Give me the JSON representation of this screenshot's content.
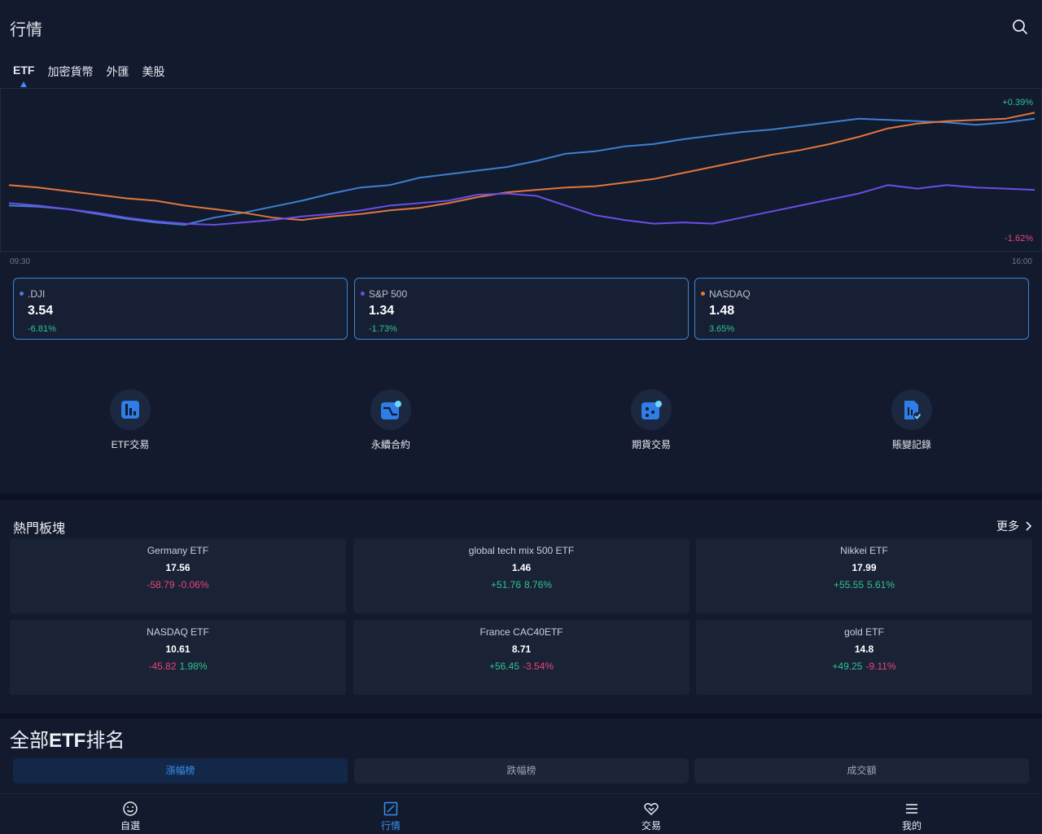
{
  "header": {
    "title": "行情"
  },
  "tabs": [
    {
      "label": "ETF",
      "active": true
    },
    {
      "label": "加密貨幣",
      "active": false
    },
    {
      "label": "外匯",
      "active": false
    },
    {
      "label": "美股",
      "active": false
    }
  ],
  "chart": {
    "change_top": "+0.39%",
    "change_bottom": "-1.62%",
    "time_start": "09:30",
    "time_end": "16:00"
  },
  "chart_data": {
    "type": "line",
    "x_range": [
      "09:30",
      "16:00"
    ],
    "series": [
      {
        "color": "#3f7fd0",
        "values": [
          0.18,
          0.17,
          0.15,
          0.11,
          0.07,
          0.04,
          0.02,
          0.08,
          0.12,
          0.17,
          0.22,
          0.28,
          0.33,
          0.35,
          0.41,
          0.44,
          0.47,
          0.5,
          0.55,
          0.61,
          0.63,
          0.67,
          0.69,
          0.73,
          0.76,
          0.79,
          0.81,
          0.84,
          0.87,
          0.9,
          0.89,
          0.88,
          0.87,
          0.85,
          0.87,
          0.9
        ]
      },
      {
        "color": "#e2773a",
        "values": [
          0.35,
          0.33,
          0.3,
          0.27,
          0.24,
          0.22,
          0.18,
          0.15,
          0.12,
          0.08,
          0.06,
          0.09,
          0.11,
          0.14,
          0.16,
          0.2,
          0.25,
          0.29,
          0.31,
          0.33,
          0.34,
          0.37,
          0.4,
          0.45,
          0.5,
          0.55,
          0.6,
          0.64,
          0.69,
          0.75,
          0.82,
          0.86,
          0.88,
          0.89,
          0.9,
          0.95
        ]
      },
      {
        "color": "#6b4ee6",
        "values": [
          0.2,
          0.18,
          0.15,
          0.12,
          0.08,
          0.05,
          0.03,
          0.02,
          0.04,
          0.06,
          0.09,
          0.11,
          0.14,
          0.18,
          0.2,
          0.22,
          0.27,
          0.28,
          0.26,
          0.18,
          0.1,
          0.06,
          0.03,
          0.04,
          0.03,
          0.08,
          0.13,
          0.18,
          0.23,
          0.28,
          0.35,
          0.32,
          0.35,
          0.33,
          0.32,
          0.31
        ]
      }
    ]
  },
  "indices": [
    {
      "name": ".DJI",
      "price": "3.54",
      "change": "-6.81%",
      "dot_color": "#4c7fd6"
    },
    {
      "name": "S&P 500",
      "price": "1.34",
      "change": "-1.73%",
      "dot_color": "#6b4ee6"
    },
    {
      "name": "NASDAQ",
      "price": "1.48",
      "change": "3.65%",
      "dot_color": "#e2773a"
    }
  ],
  "quick_actions": [
    {
      "label": "ETF交易",
      "icon": "chart-bar-icon"
    },
    {
      "label": "永續合約",
      "icon": "contract-icon"
    },
    {
      "label": "期貨交易",
      "icon": "futures-icon"
    },
    {
      "label": "賬變記錄",
      "icon": "record-icon"
    }
  ],
  "sectors": {
    "title": "熱門板塊",
    "more": "更多",
    "items": [
      {
        "name": "Germany ETF",
        "price": "17.56",
        "change": "-58.79",
        "pct": "-0.06%"
      },
      {
        "name": "global tech mix 500 ETF",
        "price": "1.46",
        "change": "+51.76",
        "pct": "8.76%"
      },
      {
        "name": "Nikkei ETF",
        "price": "17.99",
        "change": "+55.55",
        "pct": "5.61%"
      },
      {
        "name": "NASDAQ ETF",
        "price": "10.61",
        "change": "-45.82",
        "pct": "1.98%"
      },
      {
        "name": "France CAC40ETF",
        "price": "8.71",
        "change": "+56.45",
        "pct": "-3.54%"
      },
      {
        "name": "gold ETF",
        "price": "14.8",
        "change": "+49.25",
        "pct": "-9.11%"
      }
    ]
  },
  "ranking": {
    "title_prefix": "全部",
    "title_bold": "ETF",
    "title_suffix": "排名",
    "tabs": [
      {
        "label": "漲幅榜",
        "active": true
      },
      {
        "label": "跌幅榜",
        "active": false
      },
      {
        "label": "成交額",
        "active": false
      }
    ]
  },
  "nav": [
    {
      "label": "自選",
      "icon": "smile-icon",
      "active": false
    },
    {
      "label": "行情",
      "icon": "market-icon",
      "active": true
    },
    {
      "label": "交易",
      "icon": "trade-icon",
      "active": false
    },
    {
      "label": "我的",
      "icon": "menu-icon",
      "active": false
    }
  ],
  "colors": {
    "up": "#2fc48f",
    "down": "#e9457a",
    "accent": "#3b8df0"
  }
}
